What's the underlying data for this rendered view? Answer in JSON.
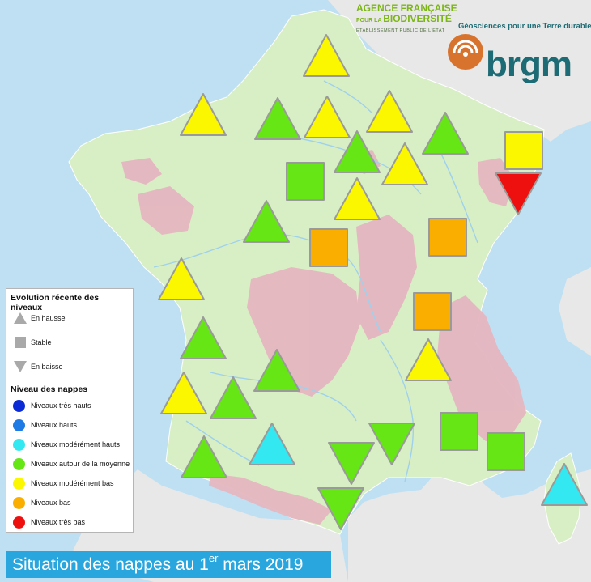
{
  "title": {
    "prefix": "Situation des nappes au 1",
    "sup": "er",
    "suffix": " mars 2019"
  },
  "logos": {
    "afb_line1": "AGENCE FRANÇAISE",
    "afb_line2_small": "POUR LA ",
    "afb_line2_big": "BIODIVERSITÉ",
    "afb_line3": "ÉTABLISSEMENT PUBLIC DE L'ÉTAT",
    "brgm_tagline": "Géosciences pour une Terre durable",
    "brgm_name": "brgm"
  },
  "colors": {
    "tres_hauts": "#0a2bd6",
    "hauts": "#1e7be6",
    "moderement_hauts": "#33e8f0",
    "moyenne": "#66e614",
    "moderement_bas": "#fbf700",
    "bas": "#f9ae00",
    "tres_bas": "#ee0f0f",
    "sea": "#bfe0f2",
    "land": "#d8efc6",
    "relief": "#e5b6c0"
  },
  "legend": {
    "evolution_title": "Evolution récente des niveaux",
    "evolution": [
      {
        "shape": "up",
        "label": "En hausse"
      },
      {
        "shape": "square",
        "label": "Stable"
      },
      {
        "shape": "down",
        "label": "En baisse"
      }
    ],
    "niveau_title": "Niveau des nappes",
    "niveaux": [
      {
        "color_key": "tres_hauts",
        "label": "Niveaux très hauts"
      },
      {
        "color_key": "hauts",
        "label": "Niveaux hauts"
      },
      {
        "color_key": "moderement_hauts",
        "label": "Niveaux modérément hauts"
      },
      {
        "color_key": "moyenne",
        "label": "Niveaux autour de la moyenne"
      },
      {
        "color_key": "moderement_bas",
        "label": "Niveaux modérément bas"
      },
      {
        "color_key": "bas",
        "label": "Niveaux bas"
      },
      {
        "color_key": "tres_bas",
        "label": "Niveaux très bas"
      }
    ]
  },
  "markers": [
    {
      "shape": "up",
      "level": "moderement_bas"
    },
    {
      "shape": "up",
      "level": "moderement_bas"
    },
    {
      "shape": "up",
      "level": "moyenne"
    },
    {
      "shape": "up",
      "level": "moderement_bas"
    },
    {
      "shape": "up",
      "level": "moderement_bas"
    },
    {
      "shape": "up",
      "level": "moyenne"
    },
    {
      "shape": "square",
      "level": "moderement_bas"
    },
    {
      "shape": "up",
      "level": "moyenne"
    },
    {
      "shape": "square",
      "level": "moyenne"
    },
    {
      "shape": "up",
      "level": "moderement_bas"
    },
    {
      "shape": "down",
      "level": "tres_bas"
    },
    {
      "shape": "up",
      "level": "moderement_bas"
    },
    {
      "shape": "up",
      "level": "moyenne"
    },
    {
      "shape": "square",
      "level": "bas"
    },
    {
      "shape": "square",
      "level": "bas"
    },
    {
      "shape": "up",
      "level": "moderement_bas"
    },
    {
      "shape": "square",
      "level": "bas"
    },
    {
      "shape": "up",
      "level": "moyenne"
    },
    {
      "shape": "up",
      "level": "moderement_bas"
    },
    {
      "shape": "up",
      "level": "moyenne"
    },
    {
      "shape": "up",
      "level": "moderement_bas"
    },
    {
      "shape": "up",
      "level": "moyenne"
    },
    {
      "shape": "square",
      "level": "moyenne"
    },
    {
      "shape": "square",
      "level": "moyenne"
    },
    {
      "shape": "down",
      "level": "moyenne"
    },
    {
      "shape": "up",
      "level": "moyenne"
    },
    {
      "shape": "up",
      "level": "moderement_hauts"
    },
    {
      "shape": "down",
      "level": "moyenne"
    },
    {
      "shape": "down",
      "level": "moyenne"
    },
    {
      "shape": "up",
      "level": "moderement_hauts"
    }
  ]
}
